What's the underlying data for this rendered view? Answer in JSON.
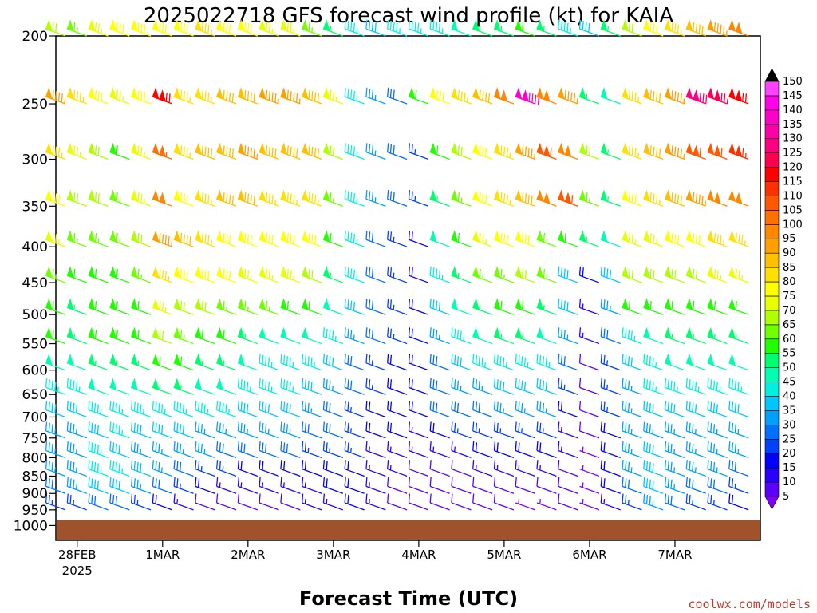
{
  "title": "2025022718 GFS forecast wind profile (kt) for KAIA",
  "xlabel": "Forecast Time (UTC)",
  "credit": "coolwx.com/models",
  "colors": {
    "terrain": "#a0522d",
    "axis": "#000000"
  },
  "chart_data": {
    "type": "wind-barb-profile",
    "units": "kt",
    "y_axis": {
      "label": "",
      "scale": "log-pressure",
      "range": [
        1000,
        200
      ],
      "ticks": [
        200,
        250,
        300,
        350,
        400,
        450,
        500,
        550,
        600,
        650,
        700,
        750,
        800,
        850,
        900,
        950,
        1000
      ]
    },
    "x_axis": {
      "label": "Forecast Time (UTC)",
      "start": "2025-02-27T18:00Z",
      "range_hours": [
        0,
        198
      ],
      "ticks": [
        {
          "hour": 6,
          "label": "28FEB",
          "sublabel": "2025"
        },
        {
          "hour": 30,
          "label": "1MAR"
        },
        {
          "hour": 54,
          "label": "2MAR"
        },
        {
          "hour": 78,
          "label": "3MAR"
        },
        {
          "hour": 102,
          "label": "4MAR"
        },
        {
          "hour": 126,
          "label": "5MAR"
        },
        {
          "hour": 150,
          "label": "6MAR"
        },
        {
          "hour": 174,
          "label": "7MAR"
        }
      ]
    },
    "colorbar": {
      "levels": [
        5,
        10,
        15,
        20,
        25,
        30,
        35,
        40,
        45,
        50,
        55,
        60,
        65,
        70,
        75,
        80,
        85,
        90,
        95,
        100,
        105,
        110,
        115,
        120,
        125,
        130,
        135,
        140,
        145,
        150
      ],
      "colors": [
        "#8000ff",
        "#5a00ff",
        "#2a00ff",
        "#0000ff",
        "#0040ff",
        "#0070ff",
        "#00a0ff",
        "#00c8ff",
        "#00f0e0",
        "#00ffb0",
        "#00ff70",
        "#20ff00",
        "#70ff00",
        "#b0ff00",
        "#e8ff00",
        "#ffff00",
        "#ffe000",
        "#ffc000",
        "#ffa000",
        "#ff8800",
        "#ff7000",
        "#ff5800",
        "#ff3000",
        "#ff0000",
        "#ff0050",
        "#ff0080",
        "#ff00a8",
        "#ff00c8",
        "#ff00e8",
        "#ff40ff"
      ]
    },
    "surface_pressure_hpa": 983,
    "sample_hours": [
      0,
      6,
      12,
      18,
      24,
      30,
      36,
      42,
      48,
      54,
      60,
      66,
      72,
      78,
      84,
      90,
      96,
      102,
      108,
      114,
      120,
      126,
      132,
      138,
      144,
      150,
      156,
      162,
      168,
      174,
      180,
      186,
      192
    ],
    "levels": [
      {
        "p": 200,
        "dir": 290,
        "speed": [
          70,
          65,
          75,
          80,
          80,
          80,
          80,
          85,
          80,
          80,
          75,
          75,
          65,
          55,
          45,
          40,
          45,
          45,
          45,
          50,
          55,
          55,
          60,
          55,
          45,
          40,
          55,
          70,
          80,
          85,
          90,
          95,
          100
        ]
      },
      {
        "p": 250,
        "dir": 290,
        "speed": [
          95,
          85,
          80,
          75,
          80,
          120,
          85,
          85,
          90,
          90,
          95,
          95,
          90,
          75,
          45,
          35,
          30,
          60,
          80,
          85,
          90,
          100,
          140,
          100,
          95,
          55,
          50,
          85,
          90,
          95,
          130,
          125,
          120
        ]
      },
      {
        "p": 300,
        "dir": 290,
        "speed": [
          85,
          75,
          70,
          60,
          75,
          105,
          85,
          90,
          90,
          95,
          90,
          90,
          90,
          70,
          45,
          35,
          30,
          25,
          60,
          70,
          80,
          85,
          95,
          110,
          100,
          70,
          55,
          85,
          90,
          95,
          110,
          110,
          115
        ]
      },
      {
        "p": 350,
        "dir": 290,
        "speed": [
          80,
          70,
          70,
          65,
          75,
          100,
          80,
          85,
          90,
          90,
          85,
          85,
          85,
          65,
          45,
          35,
          30,
          25,
          55,
          65,
          80,
          85,
          90,
          100,
          110,
          65,
          55,
          80,
          85,
          90,
          95,
          100,
          100
        ]
      },
      {
        "p": 400,
        "dir": 290,
        "speed": [
          75,
          65,
          65,
          65,
          70,
          95,
          90,
          85,
          80,
          80,
          80,
          80,
          80,
          60,
          45,
          30,
          25,
          20,
          50,
          60,
          75,
          80,
          80,
          65,
          60,
          55,
          50,
          75,
          75,
          80,
          80,
          85,
          85
        ]
      },
      {
        "p": 450,
        "dir": 290,
        "speed": [
          65,
          60,
          60,
          60,
          65,
          85,
          80,
          80,
          80,
          75,
          75,
          75,
          70,
          55,
          45,
          30,
          25,
          20,
          45,
          55,
          65,
          65,
          70,
          65,
          40,
          20,
          40,
          70,
          70,
          70,
          70,
          75,
          75
        ]
      },
      {
        "p": 500,
        "dir": 290,
        "speed": [
          60,
          55,
          60,
          60,
          60,
          75,
          70,
          70,
          65,
          65,
          65,
          60,
          60,
          50,
          40,
          30,
          25,
          20,
          40,
          50,
          55,
          60,
          60,
          55,
          40,
          15,
          35,
          60,
          60,
          60,
          60,
          60,
          60
        ]
      },
      {
        "p": 550,
        "dir": 290,
        "speed": [
          60,
          55,
          60,
          60,
          60,
          70,
          65,
          60,
          60,
          55,
          50,
          50,
          50,
          45,
          35,
          30,
          25,
          20,
          35,
          45,
          50,
          55,
          55,
          50,
          35,
          15,
          30,
          45,
          50,
          55,
          55,
          55,
          55
        ]
      },
      {
        "p": 600,
        "dir": 290,
        "speed": [
          50,
          50,
          55,
          55,
          55,
          60,
          60,
          55,
          55,
          50,
          45,
          45,
          45,
          40,
          30,
          25,
          20,
          20,
          30,
          40,
          45,
          45,
          45,
          45,
          30,
          10,
          25,
          40,
          45,
          50,
          50,
          50,
          50
        ]
      },
      {
        "p": 650,
        "dir": 290,
        "speed": [
          45,
          45,
          50,
          50,
          50,
          55,
          55,
          50,
          50,
          45,
          45,
          45,
          40,
          35,
          30,
          25,
          20,
          20,
          30,
          35,
          35,
          40,
          40,
          40,
          25,
          10,
          25,
          35,
          45,
          45,
          45,
          45,
          45
        ]
      },
      {
        "p": 700,
        "dir": 290,
        "speed": [
          40,
          40,
          45,
          45,
          45,
          45,
          45,
          45,
          45,
          40,
          40,
          40,
          35,
          30,
          25,
          20,
          20,
          20,
          30,
          30,
          30,
          35,
          35,
          35,
          20,
          10,
          25,
          35,
          40,
          40,
          40,
          40,
          40
        ]
      },
      {
        "p": 750,
        "dir": 290,
        "speed": [
          35,
          35,
          40,
          45,
          40,
          40,
          40,
          35,
          35,
          35,
          35,
          35,
          30,
          30,
          25,
          20,
          20,
          15,
          20,
          25,
          25,
          25,
          25,
          25,
          15,
          10,
          20,
          35,
          35,
          35,
          35,
          35,
          35
        ]
      },
      {
        "p": 800,
        "dir": 290,
        "speed": [
          35,
          35,
          45,
          40,
          35,
          35,
          35,
          35,
          30,
          30,
          30,
          30,
          25,
          25,
          25,
          15,
          15,
          15,
          15,
          15,
          20,
          20,
          20,
          20,
          15,
          5,
          20,
          35,
          40,
          35,
          35,
          35,
          35
        ]
      },
      {
        "p": 850,
        "dir": 290,
        "speed": [
          35,
          35,
          45,
          45,
          40,
          35,
          30,
          25,
          25,
          20,
          20,
          20,
          20,
          20,
          20,
          15,
          15,
          10,
          10,
          10,
          15,
          15,
          15,
          15,
          10,
          5,
          20,
          35,
          40,
          35,
          35,
          35,
          30
        ]
      },
      {
        "p": 900,
        "dir": 290,
        "speed": [
          30,
          35,
          40,
          40,
          35,
          30,
          25,
          20,
          15,
          15,
          15,
          15,
          15,
          20,
          20,
          15,
          10,
          10,
          10,
          10,
          10,
          10,
          10,
          10,
          10,
          5,
          20,
          30,
          40,
          35,
          30,
          30,
          25
        ]
      },
      {
        "p": 950,
        "dir": 290,
        "speed": [
          25,
          25,
          30,
          30,
          25,
          20,
          15,
          10,
          10,
          10,
          10,
          10,
          15,
          15,
          20,
          15,
          10,
          10,
          10,
          10,
          10,
          10,
          5,
          5,
          10,
          5,
          15,
          25,
          35,
          30,
          25,
          25,
          20
        ]
      }
    ]
  }
}
